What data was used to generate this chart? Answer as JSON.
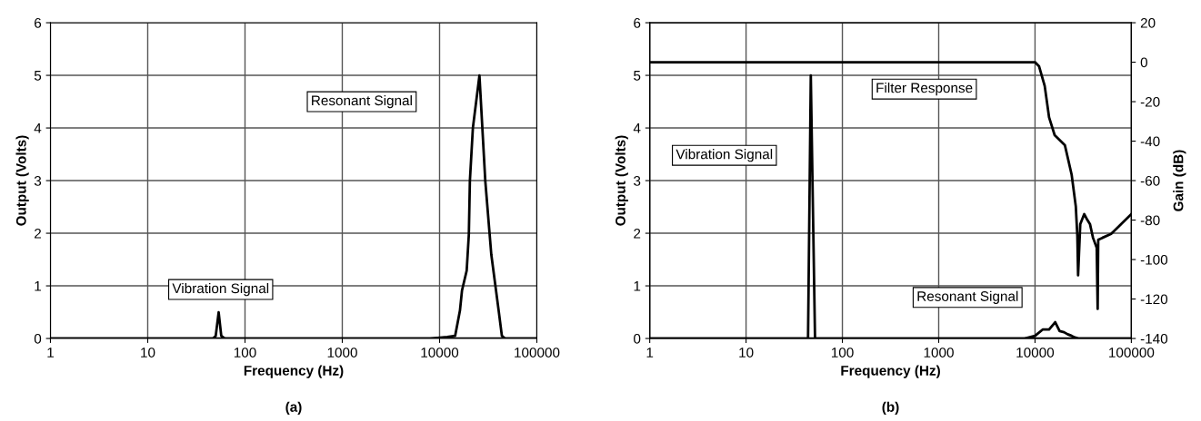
{
  "chart_data": [
    {
      "type": "line",
      "xlabel": "Frequency (Hz)",
      "ylabel": "Output (Volts)",
      "log": "x",
      "xlim": [
        1,
        100000
      ],
      "xticks": [
        1,
        10,
        100,
        1000,
        10000,
        100000
      ],
      "ylim": [
        0,
        6
      ],
      "yticks": [
        0,
        1,
        2,
        3,
        4,
        5,
        6
      ],
      "grid": true,
      "marker": "none",
      "line_style": "solid",
      "series": [
        {
          "color": "#000000",
          "x": [
            1,
            45,
            47,
            50,
            53.6,
            57,
            62,
            100000
          ],
          "values": [
            0,
            0,
            0,
            0.05,
            0.5,
            0.05,
            0,
            0
          ]
        },
        {
          "color": "#000000",
          "x": [
            1,
            8000,
            12000,
            14450,
            16200,
            17000,
            19000,
            20000,
            20500,
            22000,
            25700,
            29500,
            34000,
            40700,
            43700,
            47000,
            100000
          ],
          "values": [
            0,
            0,
            0.03,
            0.05,
            0.53,
            0.91,
            1.29,
            1.98,
            3,
            4,
            5,
            3,
            1.6,
            0.5,
            0.05,
            0,
            0
          ]
        }
      ],
      "annotations": [
        "Vibration Signal",
        "Resonant Signal",
        "(a)"
      ]
    },
    {
      "type": "line",
      "xlabel": "Frequency (Hz)",
      "ylabel": "Output (Volts)",
      "y2label": "Gain (dB)",
      "log": "x",
      "xlim": [
        1,
        100000
      ],
      "xticks": [
        1,
        10,
        100,
        1000,
        10000,
        100000
      ],
      "ylim": [
        0,
        6
      ],
      "yticks": [
        0,
        1,
        2,
        3,
        4,
        5,
        6
      ],
      "y2lim": [
        -140,
        20
      ],
      "y2ticks": [
        -140,
        -120,
        -100,
        -80,
        -60,
        -40,
        -20,
        0,
        20
      ],
      "grid": true,
      "marker": "none",
      "line_style": "solid",
      "series": [
        {
          "color": "#000000",
          "x": [
            1,
            44,
            47,
            52,
            100000
          ],
          "values": [
            0,
            0,
            5,
            0,
            0
          ]
        },
        {
          "color": "#000000",
          "x": [
            1,
            7800,
            10000,
            12000,
            14000,
            16200,
            18000,
            20000,
            21800,
            24000,
            26000,
            28200,
            30000,
            100000
          ],
          "values": [
            0,
            0,
            0.05,
            0.17,
            0.17,
            0.31,
            0.14,
            0.12,
            0.08,
            0.05,
            0.02,
            0,
            0,
            0
          ]
        },
        {
          "color": "#000000",
          "axis": "y2",
          "x": [
            1,
            10000,
            11000,
            12600,
            14000,
            16000,
            20400,
            24000,
            26500,
            27500,
            28000,
            29500,
            32400,
            35000,
            37200,
            40000,
            43700,
            44700,
            45300,
            50000,
            61700,
            100000
          ],
          "values": [
            0,
            0,
            -2,
            -12,
            -28,
            -37,
            -42,
            -57,
            -73,
            -88,
            -108,
            -82,
            -77,
            -80,
            -82,
            -89,
            -94,
            -125,
            -90,
            -89,
            -87,
            -77
          ]
        }
      ],
      "annotations": [
        "Vibration Signal",
        "Filter Response",
        "Resonant Signal",
        "(b)"
      ]
    }
  ]
}
